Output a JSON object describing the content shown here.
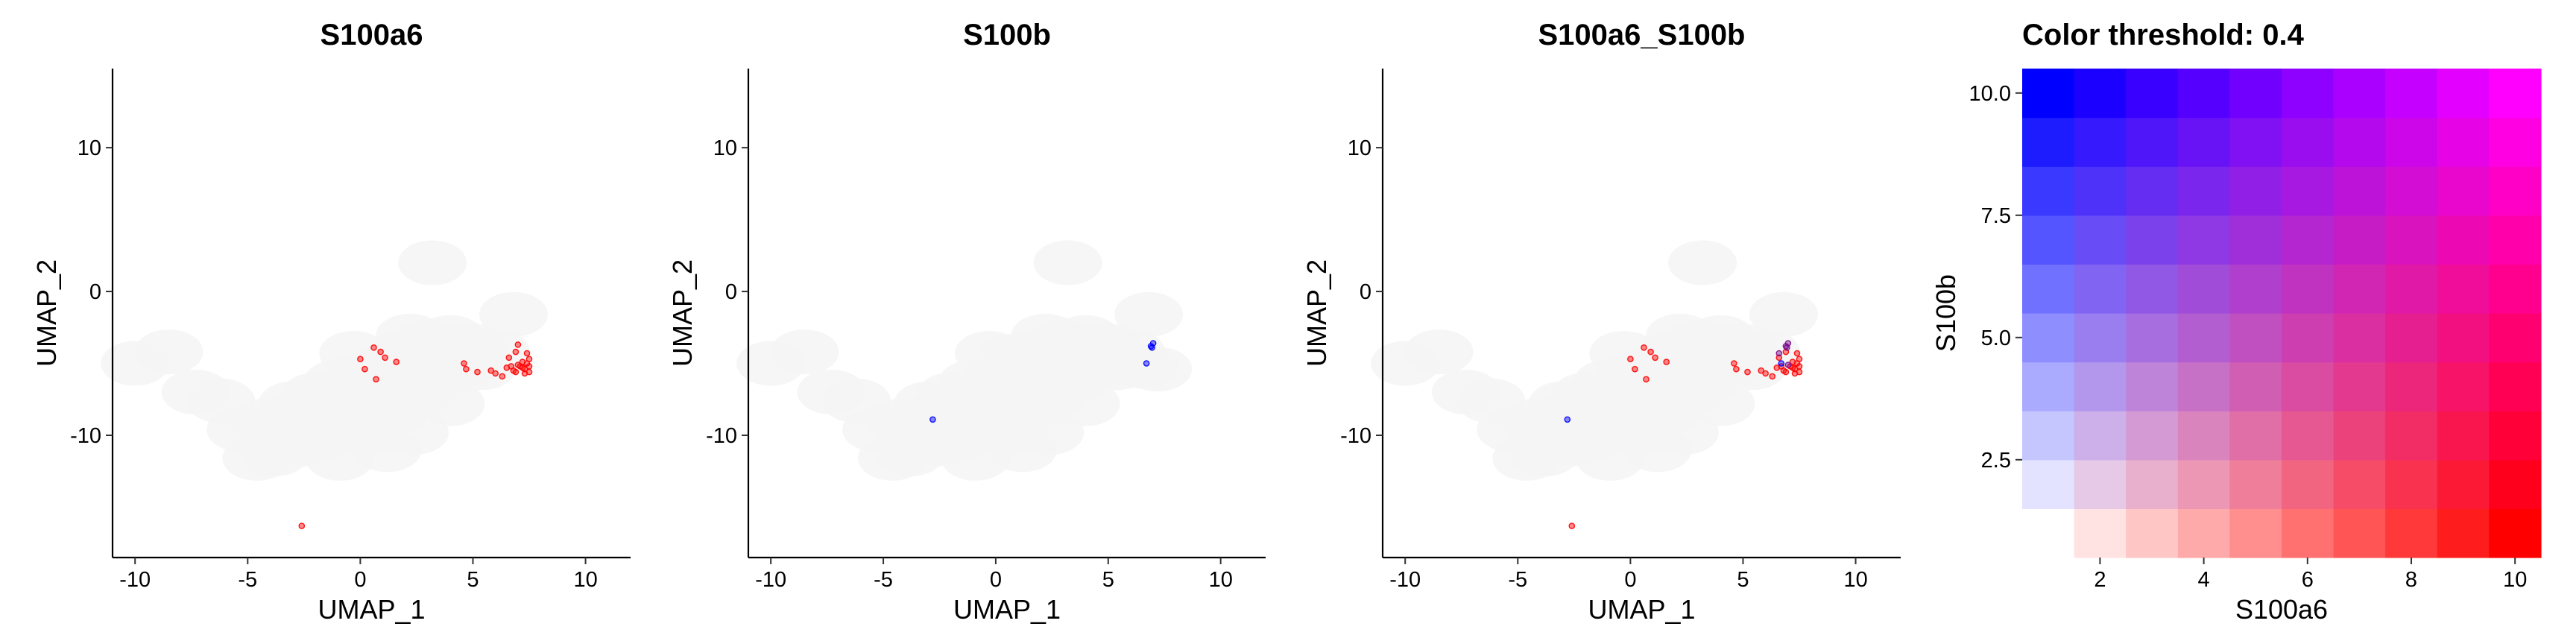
{
  "chart_data": [
    {
      "type": "scatter",
      "title": "S100a6",
      "xlabel": "UMAP_1",
      "ylabel": "UMAP_2",
      "xlim": [
        -11,
        12
      ],
      "ylim": [
        -18.5,
        15.5
      ],
      "xticks": [
        -10,
        -5,
        0,
        5,
        10
      ],
      "yticks": [
        -10,
        0,
        10
      ],
      "grid": false,
      "background_points": [
        [
          -5.3,
          -9.6
        ],
        [
          -4.2,
          -9.0
        ],
        [
          -3.0,
          -7.8
        ],
        [
          -2.0,
          -7.2
        ],
        [
          -1.0,
          -6.3
        ],
        [
          0.0,
          -5.8
        ],
        [
          1.0,
          -5.2
        ],
        [
          2.0,
          -4.3
        ],
        [
          3.0,
          -3.5
        ],
        [
          4.0,
          -3.2
        ],
        [
          5.0,
          -3.8
        ],
        [
          6.0,
          -4.2
        ],
        [
          -0.5,
          -8.8
        ],
        [
          0.5,
          -9.8
        ],
        [
          1.5,
          -8.5
        ],
        [
          2.5,
          -7.3
        ],
        [
          3.5,
          -6.2
        ],
        [
          -2.5,
          -10.6
        ],
        [
          -1.5,
          -10.1
        ],
        [
          3.2,
          -4.6
        ],
        [
          2.2,
          -3.1
        ],
        [
          -3.8,
          -11.3
        ],
        [
          -2.7,
          -8.5
        ],
        [
          -1.8,
          -8.9
        ],
        [
          -0.8,
          -9.4
        ],
        [
          0.6,
          -7.3
        ],
        [
          1.8,
          -6.7
        ],
        [
          2.8,
          -6.0
        ],
        [
          -3.5,
          -10.2
        ],
        [
          -2.2,
          -9.6
        ],
        [
          -1.2,
          -7.8
        ],
        [
          0.2,
          -6.5
        ],
        [
          -0.3,
          -4.3
        ],
        [
          4.6,
          -5.1
        ],
        [
          5.4,
          -5.3
        ],
        [
          -4.6,
          -11.6
        ],
        [
          -6.2,
          -7.6
        ],
        [
          -7.3,
          -7.0
        ],
        [
          1.2,
          -11.0
        ],
        [
          -0.9,
          -11.6
        ],
        [
          2.4,
          -9.8
        ],
        [
          -8.5,
          -4.2
        ],
        [
          -10.0,
          -5.0
        ],
        [
          3.2,
          2.0
        ],
        [
          6.8,
          -1.6
        ],
        [
          4.0,
          -7.8
        ]
      ],
      "series": [
        {
          "color": "#ff0000",
          "points": [
            [
              -2.6,
              -16.3
            ],
            [
              0.0,
              -4.7
            ],
            [
              0.2,
              -5.4
            ],
            [
              0.6,
              -3.9
            ],
            [
              0.9,
              -4.2
            ],
            [
              1.1,
              -4.6
            ],
            [
              0.7,
              -6.1
            ],
            [
              1.6,
              -4.9
            ],
            [
              4.6,
              -5.0
            ],
            [
              4.7,
              -5.4
            ],
            [
              5.2,
              -5.6
            ],
            [
              5.8,
              -5.5
            ],
            [
              6.0,
              -5.7
            ],
            [
              6.3,
              -5.9
            ],
            [
              6.5,
              -5.3
            ],
            [
              6.6,
              -4.6
            ],
            [
              6.8,
              -5.5
            ],
            [
              6.9,
              -4.2
            ],
            [
              7.0,
              -3.7
            ],
            [
              7.1,
              -5.2
            ],
            [
              7.2,
              -4.9
            ],
            [
              7.3,
              -5.4
            ],
            [
              7.4,
              -5.0
            ],
            [
              7.4,
              -4.3
            ],
            [
              7.5,
              -5.6
            ],
            [
              7.5,
              -4.7
            ],
            [
              7.2,
              -5.3
            ],
            [
              7.0,
              -5.1
            ],
            [
              6.7,
              -5.2
            ],
            [
              7.3,
              -5.7
            ],
            [
              6.9,
              -5.6
            ],
            [
              7.5,
              -5.2
            ]
          ]
        }
      ]
    },
    {
      "type": "scatter",
      "title": "S100b",
      "xlabel": "UMAP_1",
      "ylabel": "UMAP_2",
      "xlim": [
        -11,
        12
      ],
      "ylim": [
        -18.5,
        15.5
      ],
      "xticks": [
        -10,
        -5,
        0,
        5,
        10
      ],
      "yticks": [
        -10,
        0,
        10
      ],
      "grid": false,
      "background_points": [
        [
          -5.3,
          -9.6
        ],
        [
          -4.2,
          -9.0
        ],
        [
          -3.0,
          -7.8
        ],
        [
          -2.0,
          -7.2
        ],
        [
          -1.0,
          -6.3
        ],
        [
          0.0,
          -5.8
        ],
        [
          1.0,
          -5.2
        ],
        [
          2.0,
          -4.3
        ],
        [
          3.0,
          -3.5
        ],
        [
          4.0,
          -3.2
        ],
        [
          5.0,
          -3.8
        ],
        [
          6.0,
          -4.2
        ],
        [
          -0.5,
          -8.8
        ],
        [
          0.5,
          -9.8
        ],
        [
          1.5,
          -8.5
        ],
        [
          2.5,
          -7.3
        ],
        [
          3.5,
          -6.2
        ],
        [
          -2.5,
          -10.6
        ],
        [
          -1.5,
          -10.1
        ],
        [
          3.2,
          -4.6
        ],
        [
          2.2,
          -3.1
        ],
        [
          -3.8,
          -11.3
        ],
        [
          -2.7,
          -8.5
        ],
        [
          -1.8,
          -8.9
        ],
        [
          -0.8,
          -9.4
        ],
        [
          0.6,
          -7.3
        ],
        [
          1.8,
          -6.7
        ],
        [
          2.8,
          -6.0
        ],
        [
          -3.5,
          -10.2
        ],
        [
          -2.2,
          -9.6
        ],
        [
          -1.2,
          -7.8
        ],
        [
          0.2,
          -6.5
        ],
        [
          -0.3,
          -4.3
        ],
        [
          4.6,
          -5.1
        ],
        [
          5.4,
          -5.3
        ],
        [
          -4.6,
          -11.6
        ],
        [
          -6.2,
          -7.6
        ],
        [
          -7.3,
          -7.0
        ],
        [
          1.2,
          -11.0
        ],
        [
          -0.9,
          -11.6
        ],
        [
          2.4,
          -9.8
        ],
        [
          -8.5,
          -4.2
        ],
        [
          -10.0,
          -5.0
        ],
        [
          3.2,
          2.0
        ],
        [
          6.8,
          -1.6
        ],
        [
          4.0,
          -7.8
        ],
        [
          6.6,
          -5.2
        ],
        [
          7.2,
          -5.4
        ],
        [
          0.8,
          -4.5
        ]
      ],
      "series": [
        {
          "color": "#0000ff",
          "points": [
            [
              -2.8,
              -8.9
            ],
            [
              6.7,
              -5.0
            ],
            [
              6.9,
              -3.8
            ],
            [
              7.0,
              -3.6
            ],
            [
              6.95,
              -3.9
            ]
          ]
        }
      ]
    },
    {
      "type": "scatter",
      "title": "S100a6_S100b",
      "xlabel": "UMAP_1",
      "ylabel": "UMAP_2",
      "xlim": [
        -11,
        12
      ],
      "ylim": [
        -18.5,
        15.5
      ],
      "xticks": [
        -10,
        -5,
        0,
        5,
        10
      ],
      "yticks": [
        -10,
        0,
        10
      ],
      "grid": false,
      "background_points": [
        [
          -5.3,
          -9.6
        ],
        [
          -4.2,
          -9.0
        ],
        [
          -3.0,
          -7.8
        ],
        [
          -2.0,
          -7.2
        ],
        [
          -1.0,
          -6.3
        ],
        [
          0.0,
          -5.8
        ],
        [
          1.0,
          -5.2
        ],
        [
          2.0,
          -4.3
        ],
        [
          3.0,
          -3.5
        ],
        [
          4.0,
          -3.2
        ],
        [
          5.0,
          -3.8
        ],
        [
          6.0,
          -4.2
        ],
        [
          -0.5,
          -8.8
        ],
        [
          0.5,
          -9.8
        ],
        [
          1.5,
          -8.5
        ],
        [
          2.5,
          -7.3
        ],
        [
          3.5,
          -6.2
        ],
        [
          -2.5,
          -10.6
        ],
        [
          -1.5,
          -10.1
        ],
        [
          3.2,
          -4.6
        ],
        [
          2.2,
          -3.1
        ],
        [
          -3.8,
          -11.3
        ],
        [
          -2.7,
          -8.5
        ],
        [
          -1.8,
          -8.9
        ],
        [
          -0.8,
          -9.4
        ],
        [
          0.6,
          -7.3
        ],
        [
          1.8,
          -6.7
        ],
        [
          2.8,
          -6.0
        ],
        [
          -3.5,
          -10.2
        ],
        [
          -2.2,
          -9.6
        ],
        [
          -1.2,
          -7.8
        ],
        [
          0.2,
          -6.5
        ],
        [
          -0.3,
          -4.3
        ],
        [
          4.6,
          -5.1
        ],
        [
          5.4,
          -5.3
        ],
        [
          -4.6,
          -11.6
        ],
        [
          -6.2,
          -7.6
        ],
        [
          -7.3,
          -7.0
        ],
        [
          1.2,
          -11.0
        ],
        [
          -0.9,
          -11.6
        ],
        [
          2.4,
          -9.8
        ],
        [
          -8.5,
          -4.2
        ],
        [
          -10.0,
          -5.0
        ],
        [
          3.2,
          2.0
        ],
        [
          6.8,
          -1.6
        ],
        [
          4.0,
          -7.8
        ]
      ],
      "series": [
        {
          "color": "#ff0000",
          "points": [
            [
              -2.6,
              -16.3
            ],
            [
              0.0,
              -4.7
            ],
            [
              0.2,
              -5.4
            ],
            [
              0.6,
              -3.9
            ],
            [
              0.9,
              -4.2
            ],
            [
              1.1,
              -4.6
            ],
            [
              0.7,
              -6.1
            ],
            [
              1.6,
              -4.9
            ],
            [
              4.6,
              -5.0
            ],
            [
              4.7,
              -5.4
            ],
            [
              5.2,
              -5.6
            ],
            [
              5.8,
              -5.5
            ],
            [
              6.0,
              -5.7
            ],
            [
              6.3,
              -5.9
            ],
            [
              6.5,
              -5.3
            ],
            [
              6.6,
              -4.6
            ],
            [
              6.8,
              -5.5
            ],
            [
              6.9,
              -4.2
            ],
            [
              7.1,
              -5.2
            ],
            [
              7.2,
              -4.9
            ],
            [
              7.3,
              -5.4
            ],
            [
              7.4,
              -5.0
            ],
            [
              7.4,
              -4.3
            ],
            [
              7.5,
              -5.6
            ],
            [
              7.5,
              -4.7
            ],
            [
              7.2,
              -5.3
            ],
            [
              6.7,
              -5.2
            ],
            [
              7.3,
              -5.7
            ],
            [
              6.9,
              -5.6
            ],
            [
              7.5,
              -5.2
            ]
          ]
        },
        {
          "color": "#0000ff",
          "points": [
            [
              -2.8,
              -8.9
            ],
            [
              6.7,
              -5.0
            ]
          ]
        },
        {
          "color": "#7a0a8c",
          "points": [
            [
              6.9,
              -3.8
            ],
            [
              7.0,
              -3.6
            ],
            [
              6.95,
              -3.9
            ],
            [
              7.0,
              -5.1
            ],
            [
              6.6,
              -4.3
            ]
          ]
        }
      ]
    },
    {
      "type": "heatmap",
      "title": "Color threshold: 0.4",
      "xlabel": "S100a6",
      "ylabel": "S100b",
      "xlim": [
        0.5,
        10.5
      ],
      "ylim": [
        0.5,
        10.5
      ],
      "xticks": [
        2,
        4,
        6,
        8,
        10
      ],
      "yticks": [
        2.5,
        5.0,
        7.5,
        10.0
      ],
      "ytick_labels": [
        "2.5",
        "5.0",
        "7.5",
        "10.0"
      ],
      "grid": false,
      "n": 10,
      "colors": {
        "low": "#ffffff",
        "x_high": "#ff0000",
        "y_high": "#0000ff",
        "both_high": "#ff00ff"
      }
    }
  ]
}
